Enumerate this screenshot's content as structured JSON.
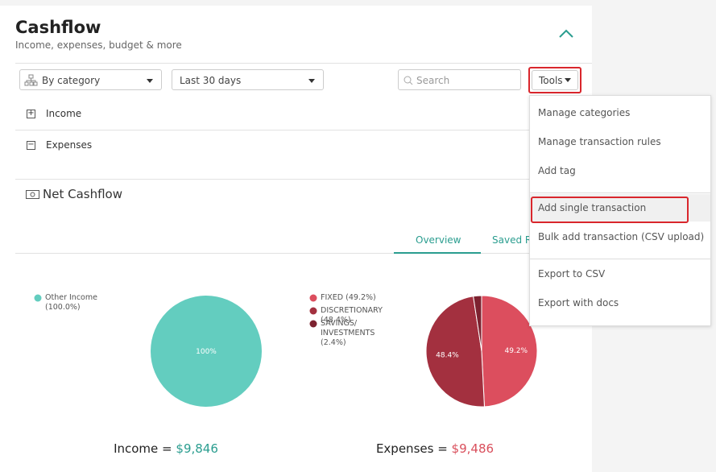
{
  "header": {
    "title": "Cashflow",
    "subtitle": "Income, expenses, budget & more"
  },
  "filters": {
    "category": "By category",
    "period": "Last 30 days",
    "search": "Search",
    "tools": "Tools"
  },
  "sections": [
    "Income",
    "Expenses"
  ],
  "net_cashflow": "Net Cashflow",
  "tabs": [
    "Overview",
    "Saved R"
  ],
  "menu": {
    "groups": [
      [
        "Manage categories",
        "Manage transaction rules",
        "Add tag"
      ],
      [
        "Add single transaction",
        "Bulk add transaction (CSV upload)"
      ],
      [
        "Export to CSV",
        "Export with docs"
      ]
    ]
  },
  "charts": [
    {
      "type": "pie",
      "series": [
        {
          "name": "Other Income",
          "label": "(100.0%)",
          "color": "#63cdbf",
          "value": 100,
          "value_label": "100%"
        }
      ],
      "total_label": "Income =",
      "total": "$9,846",
      "total_color": "#2a9d8f"
    },
    {
      "type": "pie",
      "series": [
        {
          "name": "FIXED",
          "label": "(49.2%)",
          "color": "#dc4e5e",
          "value": 49.2,
          "value_label": "49.2%"
        },
        {
          "name": "DISCRETIONARY",
          "label": "(48.4%)",
          "color": "#a3303f",
          "value": 48.4,
          "value_label": "48.4%"
        },
        {
          "name": "SAVINGS/ INVESTMENTS",
          "label": "(2.4%)",
          "color": "#7d2230",
          "value": 2.4
        }
      ],
      "total_label": "Expenses =",
      "total": "$9,486",
      "total_color": "#d94f5c"
    }
  ]
}
